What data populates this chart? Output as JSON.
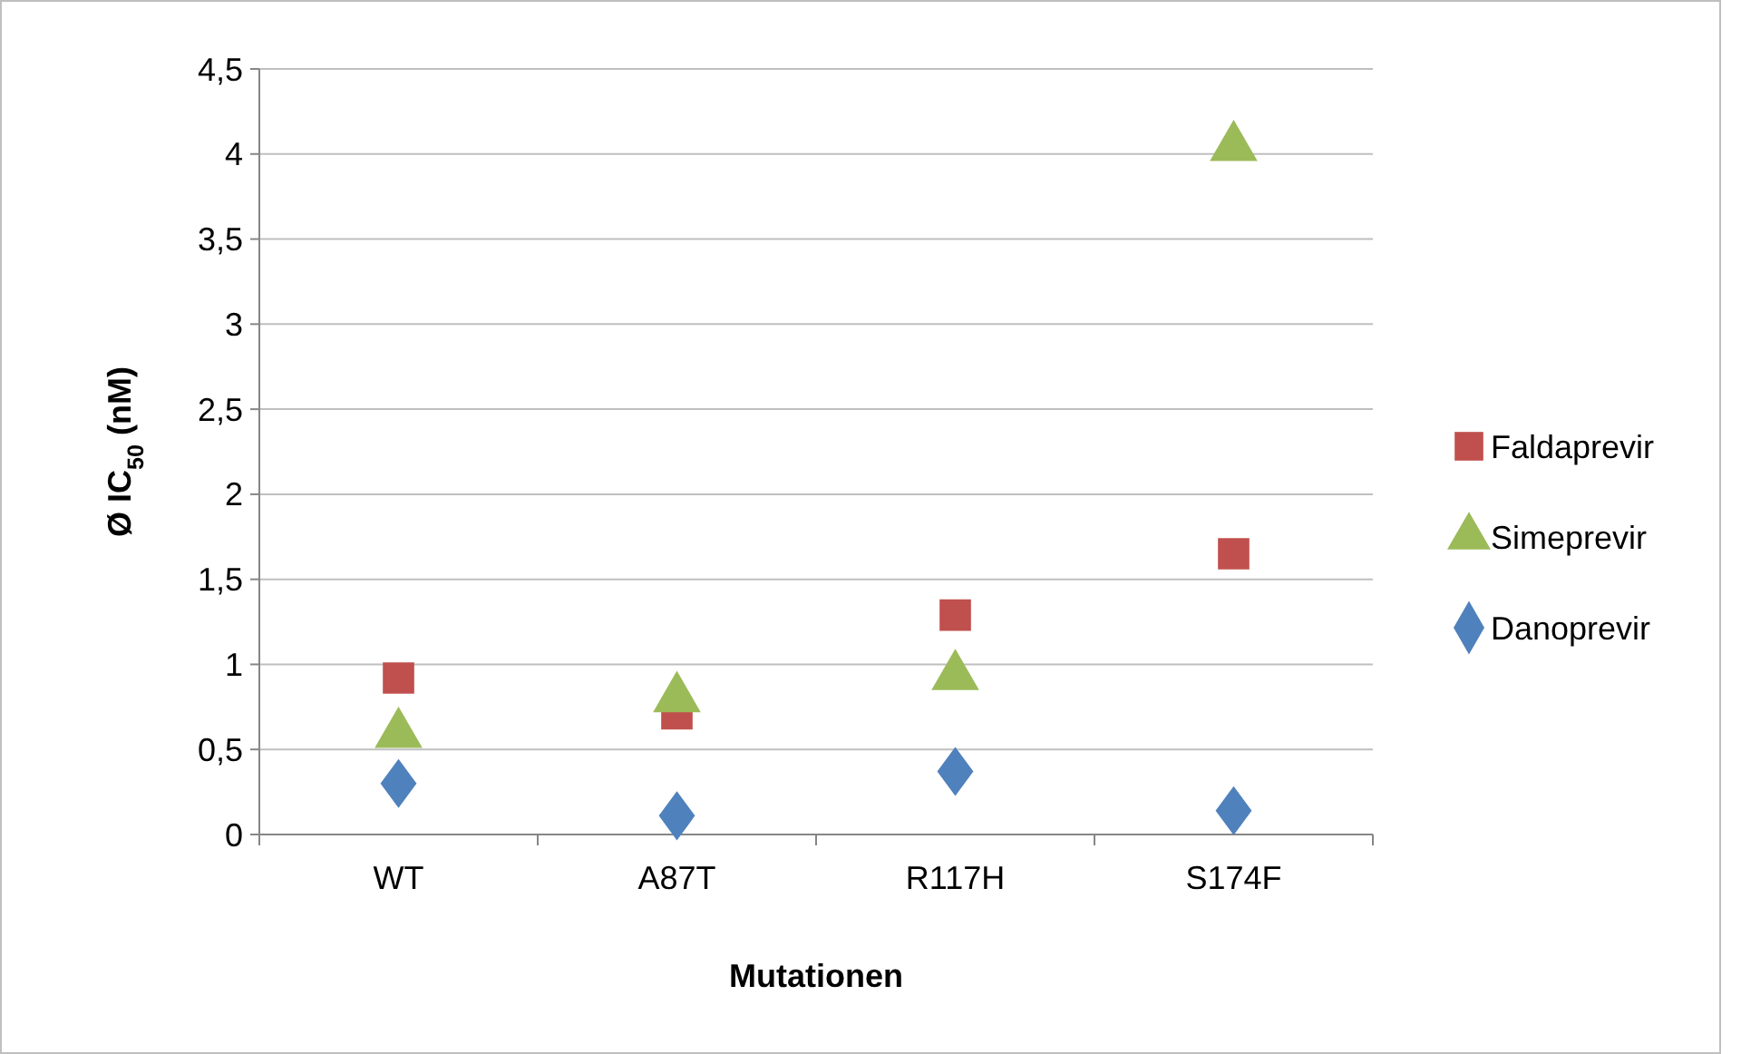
{
  "chart_data": {
    "type": "scatter",
    "xlabel": "Mutationen",
    "ylabel": "Ø IC$_{50}$ (nM)",
    "categories": [
      "WT",
      "A87T",
      "R117H",
      "S174F"
    ],
    "series": [
      {
        "name": "Faldaprevir",
        "color": "#c0504d",
        "marker": "square",
        "values": [
          0.92,
          0.71,
          1.29,
          1.65
        ]
      },
      {
        "name": "Simeprevir",
        "color": "#9bbb59",
        "marker": "triangle",
        "values": [
          0.59,
          0.8,
          0.93,
          4.04
        ]
      },
      {
        "name": "Danoprevir",
        "color": "#4f81bd",
        "marker": "diamond",
        "values": [
          0.3,
          0.11,
          0.37,
          0.14
        ]
      }
    ],
    "ylim": [
      0,
      4.5
    ],
    "yticks": [
      {
        "value": 0,
        "label": "0"
      },
      {
        "value": 0.5,
        "label": "0,5"
      },
      {
        "value": 1,
        "label": "1"
      },
      {
        "value": 1.5,
        "label": "1,5"
      },
      {
        "value": 2,
        "label": "2"
      },
      {
        "value": 2.5,
        "label": "2,5"
      },
      {
        "value": 3,
        "label": "3"
      },
      {
        "value": 3.5,
        "label": "3,5"
      },
      {
        "value": 4,
        "label": "4"
      },
      {
        "value": 4.5,
        "label": "4,5"
      }
    ],
    "grid": "y",
    "legend": "right"
  }
}
